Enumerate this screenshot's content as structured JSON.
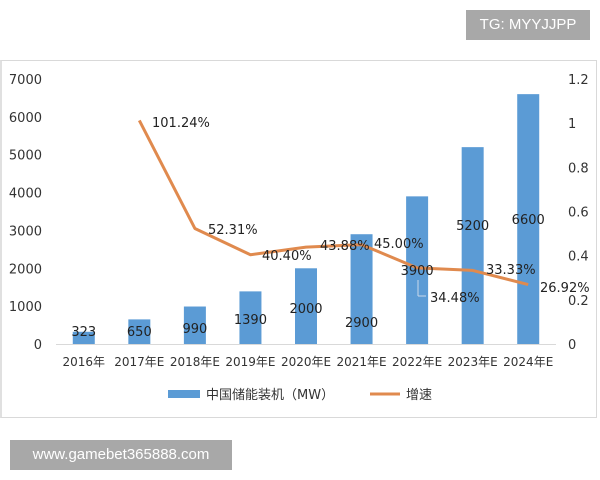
{
  "watermarks": {
    "top_right": "TG: MYYJJPP",
    "bottom_left": "www.gamebet365888.com"
  },
  "chart_data": {
    "type": "bar+line",
    "title": "",
    "categories": [
      "2016年",
      "2017年E",
      "2018年E",
      "2019年E",
      "2020年E",
      "2021年E",
      "2022年E",
      "2023年E",
      "2024年E"
    ],
    "series": [
      {
        "name": "中国储能装机（MW）",
        "type": "bar",
        "axis": "left",
        "color": "#5b9bd5",
        "values": [
          323,
          650,
          990,
          1390,
          2000,
          2900,
          3900,
          5200,
          6600
        ],
        "labels": [
          "323",
          "650",
          "990",
          "1390",
          "2000",
          "2900",
          "3900",
          "5200",
          "6600"
        ]
      },
      {
        "name": "增速",
        "type": "line",
        "axis": "right",
        "color": "#ed7d31",
        "values": [
          null,
          1.0124,
          0.5231,
          0.404,
          0.4388,
          0.45,
          0.3448,
          0.3333,
          0.2692
        ],
        "labels": [
          "",
          "101.24%",
          "52.31%",
          "40.40%",
          "43.88%",
          "45.00%",
          "34.48%",
          "33.33%",
          "26.92%"
        ]
      }
    ],
    "left_axis": {
      "ticks": [
        "0",
        "1000",
        "2000",
        "3000",
        "4000",
        "5000",
        "6000",
        "7000"
      ],
      "range": [
        0,
        7000
      ]
    },
    "right_axis": {
      "ticks": [
        "0",
        "0.2",
        "0.4",
        "0.6",
        "0.8",
        "1",
        "1.2"
      ],
      "range": [
        0,
        1.2
      ]
    },
    "legend": {
      "position": "bottom",
      "items": [
        "中国储能装机（MW）",
        "增速"
      ]
    },
    "grid": false
  }
}
